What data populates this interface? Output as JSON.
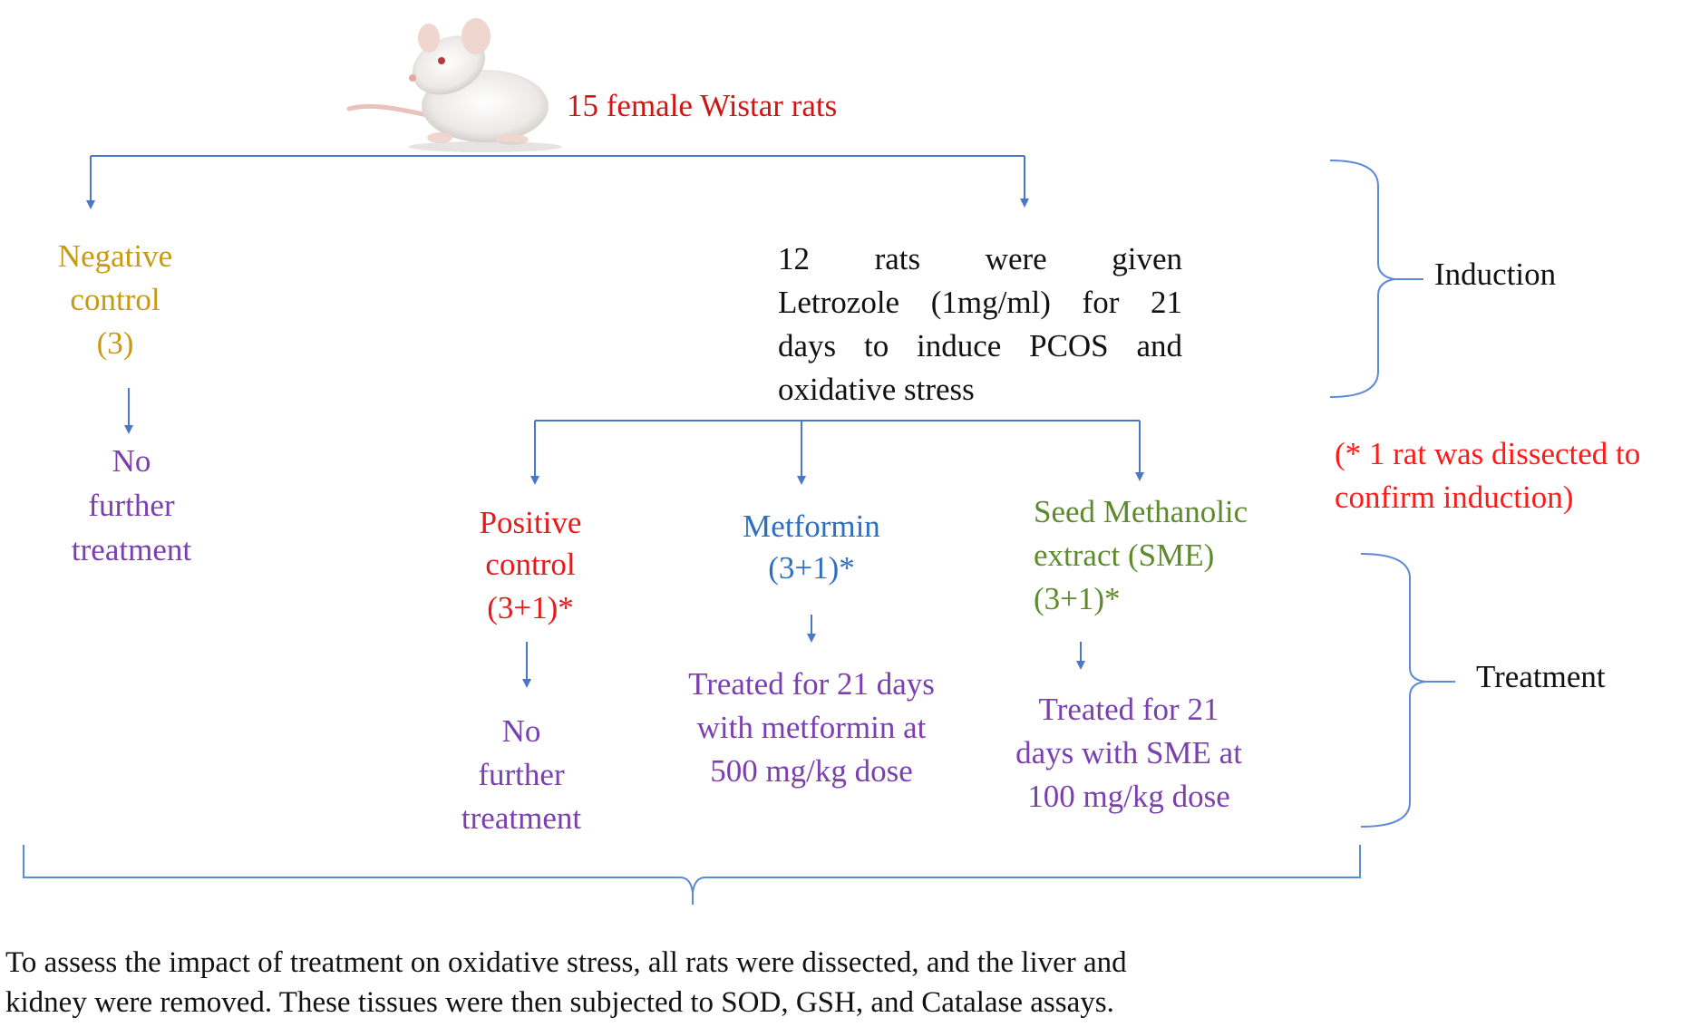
{
  "colors": {
    "arrow": "#4a78c8",
    "bracket": "#5b8bd6",
    "root": "#d21414",
    "negative_control": "#c79a12",
    "purple": "#7a3fb0",
    "positive_control": "#e51a1a",
    "metformin": "#2f6fc0",
    "sme": "#5e8a2e",
    "note": "#ff1a1a",
    "black": "#111111"
  },
  "root": {
    "icon": "rat-image",
    "label": "15 female Wistar rats"
  },
  "negative_control": {
    "line1": "Negative",
    "line2": "control",
    "line3": "(3)",
    "outcome": [
      "No",
      "further",
      "treatment"
    ]
  },
  "induction_group": {
    "lines": [
      "12 rats were given",
      "Letrozole (1mg/ml) for 21",
      "days to induce PCOS and",
      "oxidative stress"
    ]
  },
  "positive_control": {
    "line1": "Positive",
    "line2": "control",
    "line3": "(3+1)*",
    "outcome": [
      "No",
      "further",
      "treatment"
    ]
  },
  "metformin": {
    "line1": "Metformin",
    "line2": "(3+1)*",
    "outcome": [
      "Treated for 21 days",
      "with metformin at",
      "500 mg/kg dose"
    ]
  },
  "sme": {
    "line1": "Seed Methanolic",
    "line2": "extract (SME)",
    "line3": "(3+1)*",
    "outcome": [
      "Treated for 21",
      "days with SME at",
      "100 mg/kg dose"
    ]
  },
  "note": {
    "line1": "(* 1 rat was dissected to",
    "line2": "confirm induction)"
  },
  "phases": {
    "induction": "Induction",
    "treatment": "Treatment"
  },
  "footer": {
    "line1": "To assess the impact of treatment on oxidative stress, all rats were dissected, and the liver and",
    "line2": "kidney were removed. These tissues were then subjected to SOD, GSH, and Catalase assays."
  }
}
